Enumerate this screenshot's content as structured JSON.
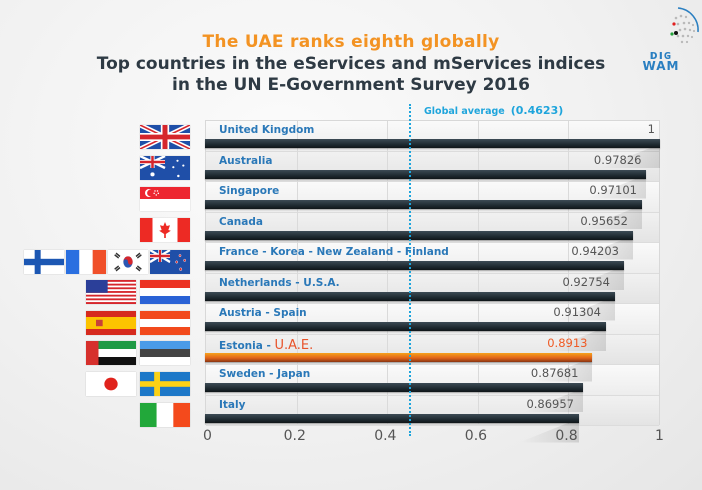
{
  "header": {
    "headline": "The UAE ranks eighth globally",
    "title_line1": "Top countries in the eServices and mServices indices",
    "title_line2": "in the UN E-Government Survey 2016",
    "logo_text_top": "ᴅıɢ",
    "logo_text_bottom": "WAM"
  },
  "colors": {
    "headline": "#f39323",
    "title": "#2e3a44",
    "country_label": "#2a78b8",
    "highlight": "#ef5a24",
    "average_line": "#1fa5dc",
    "bar": "#1f2a31"
  },
  "chart_data": {
    "type": "bar",
    "orientation": "horizontal",
    "title": "Top countries in the eServices and mServices indices in the UN E-Government Survey 2016",
    "subtitle": "The UAE ranks eighth globally",
    "xlabel": "",
    "ylabel": "",
    "xlim": [
      0,
      1
    ],
    "xticks": [
      "0",
      "0.2",
      "0.4",
      "0.6",
      "0.8",
      "1"
    ],
    "grid": true,
    "reference_line": {
      "label": "Global average",
      "value_label": "(0.4623)",
      "value": 0.4623
    },
    "categories": [
      "United Kingdom",
      "Australia",
      "Singapore",
      "Canada",
      "France - Korea - New Zealand - Finland",
      "Netherlands - U.S.A.",
      "Austria - Spain",
      "Estonia - U.A.E.",
      "Sweden - Japan",
      "Italy"
    ],
    "values": [
      1,
      0.97826,
      0.97101,
      0.95652,
      0.94203,
      0.92754,
      0.91304,
      0.8913,
      0.87681,
      0.86957
    ],
    "value_labels": [
      "1",
      "0.97826",
      "0.97101",
      "0.95652",
      "0.94203",
      "0.92754",
      "0.91304",
      "0.8913",
      "0.87681",
      "0.86957"
    ],
    "highlight_index": 7,
    "label_prefix": [
      "",
      "",
      "",
      "",
      "",
      "",
      "",
      "Estonia - ",
      "",
      ""
    ],
    "label_highlight": [
      "",
      "",
      "",
      "",
      "",
      "",
      "",
      "U.A.E.",
      "",
      ""
    ],
    "flags": [
      [
        "uk"
      ],
      [
        "australia"
      ],
      [
        "singapore"
      ],
      [
        "canada"
      ],
      [
        "finland",
        "france",
        "korea",
        "new-zealand"
      ],
      [
        "usa",
        "netherlands"
      ],
      [
        "spain",
        "austria"
      ],
      [
        "uae",
        "estonia"
      ],
      [
        "japan",
        "sweden"
      ],
      [
        "italy"
      ]
    ]
  }
}
